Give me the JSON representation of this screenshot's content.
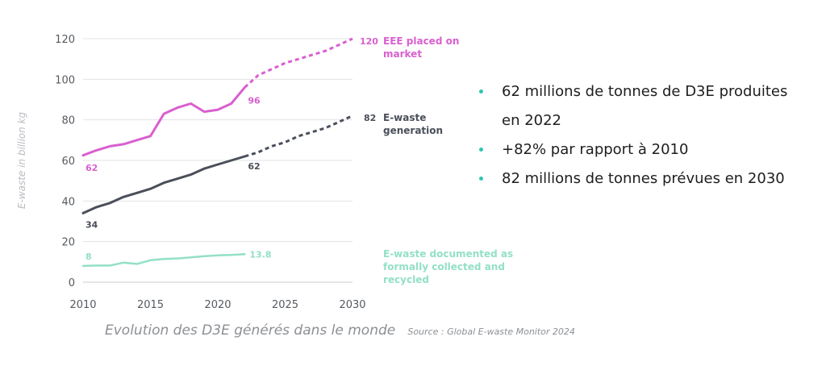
{
  "chart_data": {
    "type": "line",
    "ylabel": "E-waste in billion kg",
    "xlim": [
      2010,
      2030
    ],
    "ylim": [
      0,
      120
    ],
    "x_ticks": [
      2010,
      2015,
      2020,
      2025,
      2030
    ],
    "y_ticks": [
      0,
      20,
      40,
      60,
      80,
      100,
      120
    ],
    "grid": "horizontal",
    "series": [
      {
        "name": "EEE placed on market",
        "color": "#d95fcf",
        "points": [
          [
            2010,
            62.5
          ],
          [
            2011,
            65
          ],
          [
            2012,
            67
          ],
          [
            2013,
            68
          ],
          [
            2014,
            70
          ],
          [
            2015,
            72
          ],
          [
            2016,
            83
          ],
          [
            2017,
            86
          ],
          [
            2018,
            88
          ],
          [
            2019,
            84
          ],
          [
            2020,
            85
          ],
          [
            2021,
            88
          ],
          [
            2022,
            96
          ]
        ],
        "projection": [
          [
            2022,
            96
          ],
          [
            2023,
            102
          ],
          [
            2024,
            105
          ],
          [
            2025,
            108
          ],
          [
            2026,
            110
          ],
          [
            2027,
            112
          ],
          [
            2028,
            114
          ],
          [
            2029,
            117
          ],
          [
            2030,
            120
          ]
        ],
        "start_label": "62",
        "mid_label": "96",
        "end_label": "120"
      },
      {
        "name": "E-waste generation",
        "color": "#4a4f5a",
        "points": [
          [
            2010,
            34
          ],
          [
            2011,
            37
          ],
          [
            2012,
            39
          ],
          [
            2013,
            42
          ],
          [
            2014,
            44
          ],
          [
            2015,
            46
          ],
          [
            2016,
            49
          ],
          [
            2017,
            51
          ],
          [
            2018,
            53
          ],
          [
            2019,
            56
          ],
          [
            2020,
            58
          ],
          [
            2021,
            60
          ],
          [
            2022,
            62
          ]
        ],
        "projection": [
          [
            2022,
            62
          ],
          [
            2023,
            64
          ],
          [
            2024,
            67
          ],
          [
            2025,
            69
          ],
          [
            2026,
            72
          ],
          [
            2027,
            74
          ],
          [
            2028,
            76
          ],
          [
            2029,
            79
          ],
          [
            2030,
            82
          ]
        ],
        "start_label": "34",
        "mid_label": "62",
        "end_label": "82"
      },
      {
        "name": "E-waste documented as formally collected and recycled",
        "color": "#93e0c6",
        "points": [
          [
            2010,
            8
          ],
          [
            2011,
            8.2
          ],
          [
            2012,
            8.2
          ],
          [
            2013,
            9.6
          ],
          [
            2014,
            9
          ],
          [
            2015,
            10.8
          ],
          [
            2016,
            11.4
          ],
          [
            2017,
            11.7
          ],
          [
            2018,
            12.2
          ],
          [
            2019,
            12.8
          ],
          [
            2020,
            13.2
          ],
          [
            2021,
            13.4
          ],
          [
            2022,
            13.8
          ]
        ],
        "projection": [],
        "start_label": "8",
        "mid_label": "13.8",
        "end_label": ""
      }
    ]
  },
  "series_labels": {
    "eee": [
      "EEE placed on",
      "market"
    ],
    "ewaste": [
      "E-waste",
      "generation"
    ],
    "recycled": [
      "E-waste documented as",
      "formally collected and",
      "recycled"
    ]
  },
  "bullets": [
    {
      "text": "62 millions de tonnes de D3E produites",
      "cont": "en 2022"
    },
    {
      "text": "+82% par rapport à 2010",
      "cont": ""
    },
    {
      "text": "82 millions de tonnes prévues en 2030",
      "cont": ""
    }
  ],
  "bullet_color": "#2ec4b6",
  "caption": {
    "main": "Evolution des D3E générés dans le monde",
    "source": "Source : Global E-waste Monitor 2024"
  }
}
